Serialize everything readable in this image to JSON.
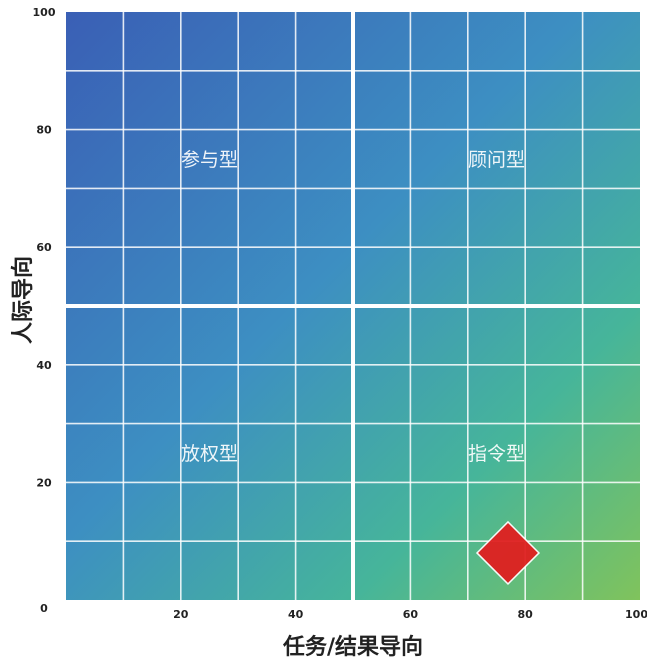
{
  "chart_data": {
    "type": "scatter",
    "xlabel": "任务/结果导向",
    "ylabel": "人际导向",
    "xlim": [
      0,
      100
    ],
    "ylim": [
      0,
      100
    ],
    "x_ticks": [
      "20",
      "40",
      "60",
      "80",
      "100"
    ],
    "y_ticks": [
      "0",
      "20",
      "40",
      "60",
      "80",
      "100"
    ],
    "grid": true,
    "quadrants": [
      {
        "label": "参与型",
        "x": 25,
        "y": 75
      },
      {
        "label": "顾问型",
        "x": 75,
        "y": 75
      },
      {
        "label": "放权型",
        "x": 25,
        "y": 25
      },
      {
        "label": "指令型",
        "x": 75,
        "y": 25
      }
    ],
    "points": [
      {
        "x": 77,
        "y": 8,
        "marker": "diamond",
        "color": "#e02020"
      }
    ],
    "colors": {
      "top_left": "#3a62b8",
      "top_right": "#3a9ec4",
      "bottom_left": "#3f93bd",
      "bottom_right": "#79c062",
      "gridline": "#ffffff",
      "point": "#e02020"
    }
  }
}
